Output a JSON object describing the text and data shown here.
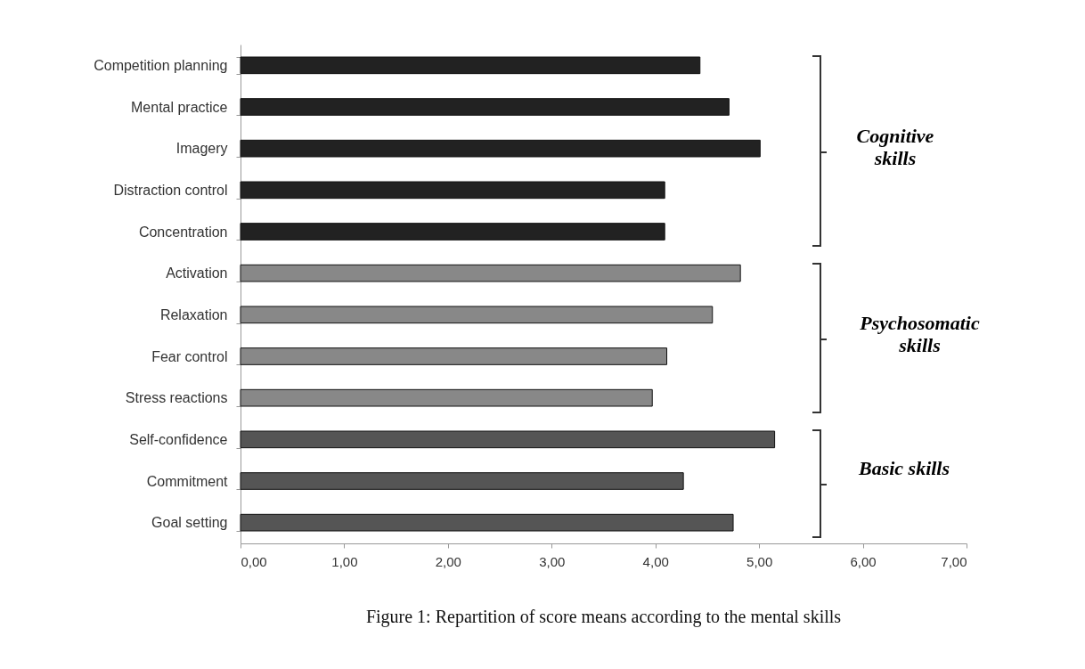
{
  "chart_data": {
    "type": "bar",
    "orientation": "horizontal",
    "title": "Figure 1: Repartition of score means according to the mental skills",
    "categories": [
      "Competition planning",
      "Mental practice",
      "Imagery",
      "Distraction control",
      "Concentration",
      "Activation",
      "Relaxation",
      "Fear control",
      "Stress reactions",
      "Self-confidence",
      "Commitment",
      "Goal setting"
    ],
    "values": [
      4.43,
      4.71,
      5.01,
      4.09,
      4.09,
      4.82,
      4.55,
      4.11,
      3.97,
      5.15,
      4.27,
      4.75
    ],
    "colors": [
      "#222222",
      "#222222",
      "#222222",
      "#222222",
      "#222222",
      "#888888",
      "#888888",
      "#888888",
      "#888888",
      "#555555",
      "#555555",
      "#555555"
    ],
    "xlim": [
      0,
      7
    ],
    "xticks": [
      {
        "value": 0,
        "label": "0,00"
      },
      {
        "value": 1,
        "label": "1,00"
      },
      {
        "value": 2,
        "label": "2,00"
      },
      {
        "value": 3,
        "label": "3,00"
      },
      {
        "value": 4,
        "label": "4,00"
      },
      {
        "value": 5,
        "label": "5,00"
      },
      {
        "value": 6,
        "label": "6,00"
      },
      {
        "value": 7,
        "label": "7,00"
      }
    ],
    "grid": false,
    "annotations": [
      "Cognitive skills",
      "Psychosomatic skills",
      "Basic skills"
    ]
  }
}
